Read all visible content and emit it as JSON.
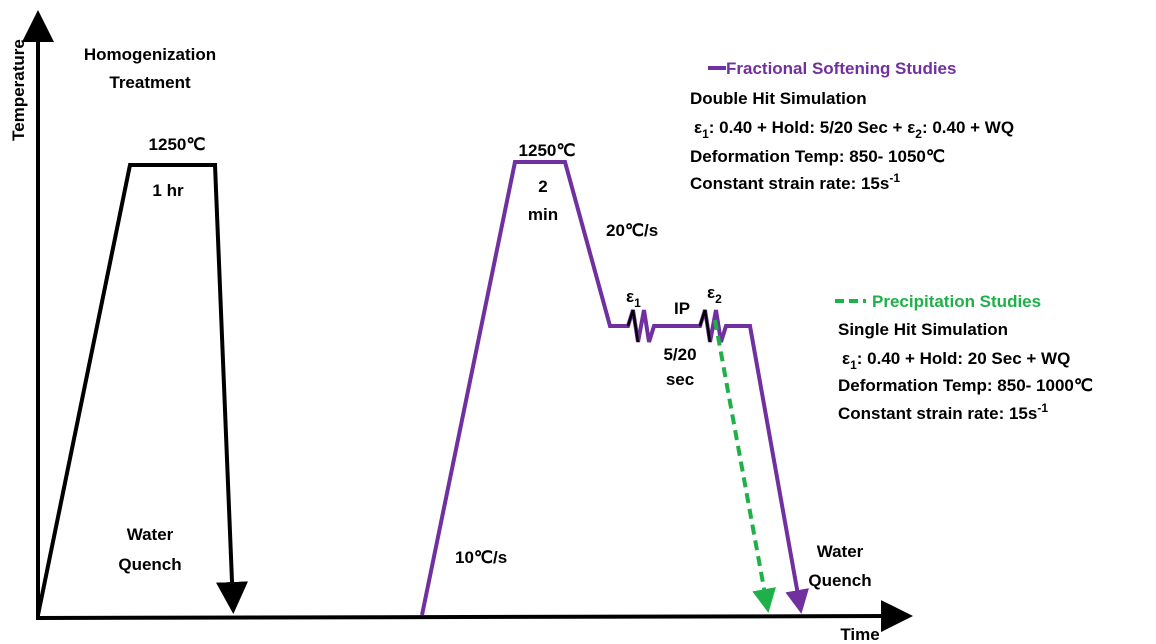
{
  "axes": {
    "y_label": "Temperature",
    "x_label": "Time"
  },
  "homogenization": {
    "title": [
      "Homogenization",
      "Treatment"
    ],
    "temperature": "1250℃",
    "hold": "1 hr",
    "quench": [
      "Water",
      "Quench"
    ]
  },
  "thermomechanical": {
    "temperature": "1250℃",
    "hold": [
      "2",
      "min"
    ],
    "cooling_rate": "20℃/s",
    "heating_rate": "10℃/s",
    "strain_1": [
      "ε",
      "1"
    ],
    "interpass": "IP",
    "strain_2": [
      "ε",
      "2"
    ],
    "interpass_time": [
      "5/20",
      "sec"
    ],
    "quench": [
      "Water",
      "Quench"
    ]
  },
  "legend": [
    {
      "label": "Fractional Softening Studies",
      "color": "#7030a0",
      "lines": [
        [
          "Double Hit Simulation"
        ],
        [
          "ε",
          "1",
          ": 0.40 + Hold: 5/20 Sec + ε",
          "2",
          ": 0.40 + WQ"
        ],
        [
          "Deformation Temp: 850- 1050℃"
        ],
        [
          "Constant strain rate: 15s",
          "-1"
        ]
      ]
    },
    {
      "label": "Precipitation Studies",
      "color": "#1fb04a",
      "lines": [
        [
          "Single Hit Simulation"
        ],
        [
          "ε",
          "1",
          ": 0.40 + Hold: 20 Sec + WQ"
        ],
        [
          "Deformation Temp: 850- 1000℃"
        ],
        [
          "Constant strain rate: 15s",
          "-1"
        ]
      ]
    }
  ]
}
